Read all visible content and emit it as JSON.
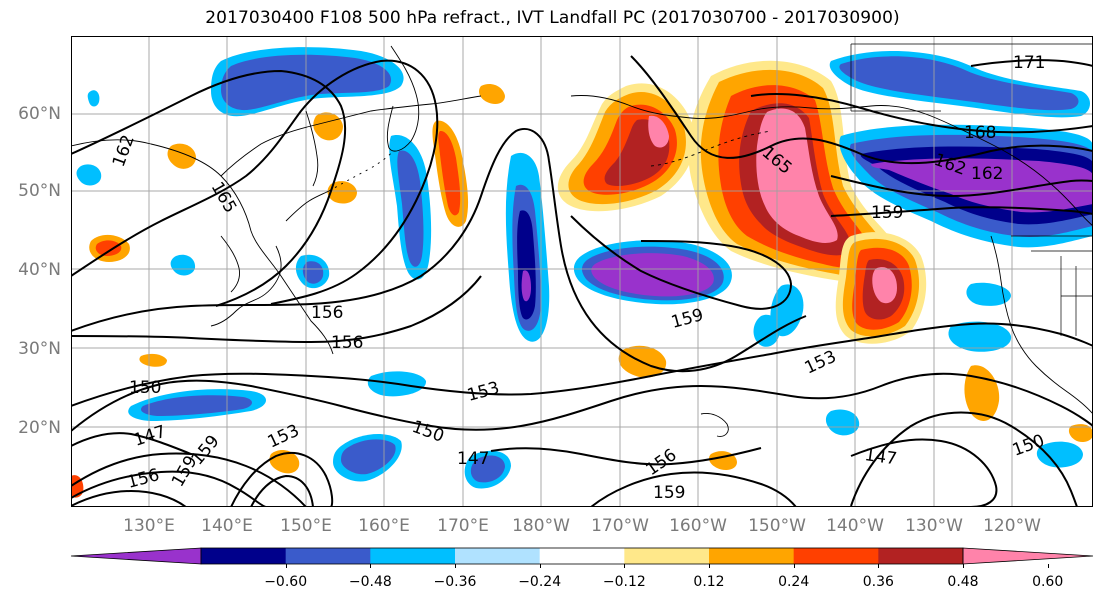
{
  "title": "2017030400 F108 500 hPa refract., IVT Landfall PC (2017030700 - 2017030900)",
  "map": {
    "lat_labels": [
      "60°N",
      "50°N",
      "40°N",
      "30°N",
      "20°N"
    ],
    "lon_labels": [
      "130°E",
      "140°E",
      "150°E",
      "160°E",
      "170°E",
      "180°W",
      "170°W",
      "160°W",
      "150°W",
      "140°W",
      "130°W",
      "120°W"
    ],
    "contour_labels": [
      "171",
      "168",
      "165",
      "162",
      "162",
      "162",
      "165",
      "159",
      "159",
      "156",
      "156",
      "150",
      "153",
      "153",
      "150",
      "147",
      "147",
      "153",
      "156",
      "159",
      "156",
      "159",
      "147",
      "150",
      "159"
    ]
  },
  "colorbar": {
    "ticks": [
      "−0.60",
      "−0.48",
      "−0.36",
      "−0.24",
      "−0.12",
      "0.12",
      "0.24",
      "0.36",
      "0.48",
      "0.60"
    ],
    "colors": [
      "#9932CC",
      "#00008B",
      "#3A5BCB",
      "#00BFFF",
      "#B0E2FF",
      "#FFFFFF",
      "#FFE88A",
      "#FFA500",
      "#FF4000",
      "#B22222",
      "#FF83AA"
    ]
  },
  "colors": {
    "lat_lon_label": "#7a7a7a",
    "contour": "#000000",
    "grid": "#a0a0a0"
  }
}
